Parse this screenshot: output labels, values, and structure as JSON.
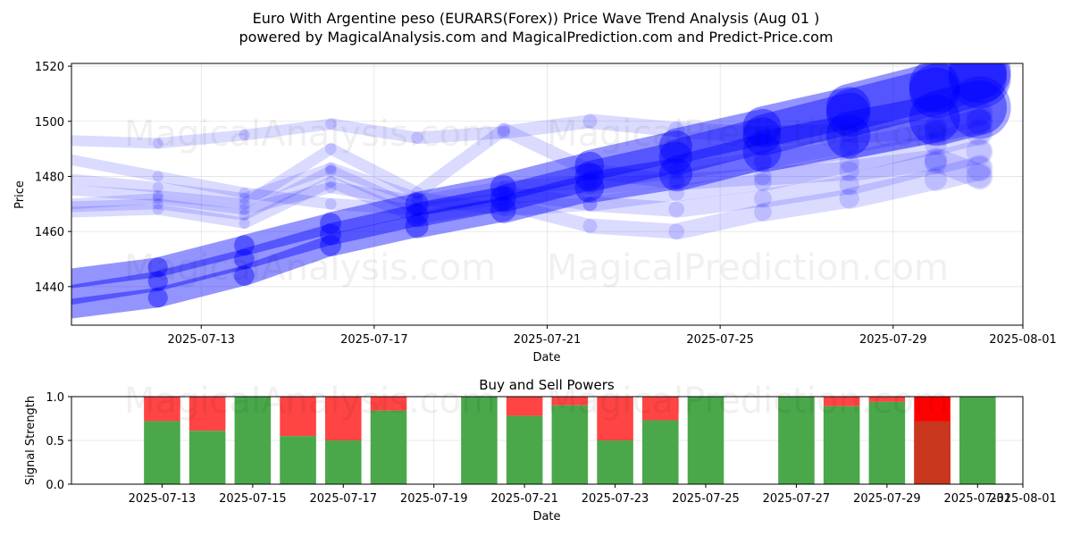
{
  "figure": {
    "title": "Euro With Argentine peso (EURARS(Forex)) Price Wave Trend Analysis (Aug 01 )",
    "subtitle": "powered by MagicalAnalysis.com and MagicalPrediction.com and Predict-Price.com",
    "watermarks": [
      "MagicalAnalysis.com",
      "MagicalPrediction.com",
      "MagicalAnalysis.com",
      "MagicalPrediction.com",
      "MagicalAnalysis.com",
      "MagicalPrediction.com"
    ],
    "colors": {
      "wave": "#0000ff",
      "buy": "#4aa84a",
      "sell": "#ff4444",
      "sell_strong": "#ff0000",
      "overlap": "#c8361e"
    }
  },
  "chart_data": [
    {
      "type": "area",
      "title": "",
      "xlabel": "Date",
      "ylabel": "Price",
      "xlim": [
        "2025-07-10",
        "2025-08-01"
      ],
      "ylim": [
        1426,
        1521
      ],
      "xticks": [
        "2025-07-13",
        "2025-07-17",
        "2025-07-21",
        "2025-07-25",
        "2025-07-29",
        "2025-08-01"
      ],
      "yticks": [
        1440,
        1460,
        1480,
        1500,
        1520
      ],
      "grid": true,
      "series": [
        {
          "x": [
            "2025-07-10",
            "2025-07-12",
            "2025-07-14",
            "2025-07-16",
            "2025-07-18",
            "2025-07-20",
            "2025-07-22",
            "2025-07-24",
            "2025-07-26",
            "2025-07-28",
            "2025-07-30",
            "2025-07-31"
          ],
          "values": [
            1437,
            1442,
            1450,
            1459,
            1466,
            1472,
            1480,
            1487,
            1495,
            1503,
            1511,
            1516
          ]
        },
        {
          "x": [
            "2025-07-10",
            "2025-07-12",
            "2025-07-14",
            "2025-07-16",
            "2025-07-18",
            "2025-07-20",
            "2025-07-22",
            "2025-07-24",
            "2025-07-26",
            "2025-07-28",
            "2025-07-30",
            "2025-07-31"
          ],
          "values": [
            1432,
            1436,
            1444,
            1455,
            1462,
            1468,
            1476,
            1481,
            1489,
            1495,
            1501,
            1505
          ]
        },
        {
          "x": [
            "2025-07-10",
            "2025-07-12",
            "2025-07-14",
            "2025-07-16",
            "2025-07-18",
            "2025-07-20",
            "2025-07-22",
            "2025-07-24",
            "2025-07-26",
            "2025-07-28",
            "2025-07-30",
            "2025-07-31"
          ],
          "values": [
            1443,
            1447,
            1455,
            1463,
            1470,
            1476,
            1484,
            1491,
            1498,
            1505,
            1513,
            1518
          ]
        },
        {
          "x": [
            "2025-07-10",
            "2025-07-12",
            "2025-07-14",
            "2025-07-16",
            "2025-07-18",
            "2025-07-20",
            "2025-07-22",
            "2025-07-24",
            "2025-07-26",
            "2025-07-28",
            "2025-07-30",
            "2025-07-31"
          ],
          "values": [
            1486,
            1480,
            1474,
            1470,
            1468,
            1472,
            1476,
            1479,
            1485,
            1490,
            1496,
            1500
          ]
        },
        {
          "x": [
            "2025-07-10",
            "2025-07-12",
            "2025-07-14",
            "2025-07-16",
            "2025-07-18",
            "2025-07-20",
            "2025-07-22",
            "2025-07-24",
            "2025-07-26",
            "2025-07-28",
            "2025-07-30",
            "2025-07-31"
          ],
          "values": [
            1470,
            1472,
            1468,
            1476,
            1471,
            1476,
            1478,
            1482,
            1486,
            1492,
            1498,
            1503
          ]
        },
        {
          "x": [
            "2025-07-10",
            "2025-07-12",
            "2025-07-14",
            "2025-07-16",
            "2025-07-18",
            "2025-07-20",
            "2025-07-22",
            "2025-07-24",
            "2025-07-26",
            "2025-07-28",
            "2025-07-30",
            "2025-07-31"
          ],
          "values": [
            1493,
            1492,
            1495,
            1499,
            1494,
            1496,
            1500,
            1497,
            1495,
            1496,
            1497,
            1500
          ]
        },
        {
          "x": [
            "2025-07-10",
            "2025-07-12",
            "2025-07-14",
            "2025-07-16",
            "2025-07-18",
            "2025-07-20",
            "2025-07-22",
            "2025-07-24",
            "2025-07-26",
            "2025-07-28",
            "2025-07-30",
            "2025-07-31"
          ],
          "values": [
            1479,
            1476,
            1472,
            1483,
            1472,
            1468,
            1470,
            1468,
            1472,
            1477,
            1485,
            1489
          ]
        },
        {
          "x": [
            "2025-07-10",
            "2025-07-12",
            "2025-07-14",
            "2025-07-16",
            "2025-07-18",
            "2025-07-20",
            "2025-07-22",
            "2025-07-24",
            "2025-07-26",
            "2025-07-28",
            "2025-07-30",
            "2025-07-31"
          ],
          "values": [
            1467,
            1468,
            1463,
            1478,
            1465,
            1470,
            1462,
            1460,
            1467,
            1472,
            1479,
            1483
          ]
        },
        {
          "x": [
            "2025-07-10",
            "2025-07-12",
            "2025-07-14",
            "2025-07-16",
            "2025-07-18",
            "2025-07-20",
            "2025-07-22",
            "2025-07-24",
            "2025-07-26",
            "2025-07-28",
            "2025-07-30",
            "2025-07-31"
          ],
          "values": [
            1475,
            1473,
            1470,
            1490,
            1474,
            1497,
            1482,
            1478,
            1480,
            1482,
            1486,
            1480
          ]
        },
        {
          "x": [
            "2025-07-10",
            "2025-07-12",
            "2025-07-14",
            "2025-07-16",
            "2025-07-18",
            "2025-07-20",
            "2025-07-22",
            "2025-07-24",
            "2025-07-26",
            "2025-07-28",
            "2025-07-30",
            "2025-07-31"
          ],
          "values": [
            1469,
            1470,
            1466,
            1482,
            1468,
            1474,
            1470,
            1474,
            1478,
            1485,
            1492,
            1496
          ]
        }
      ]
    },
    {
      "type": "bar",
      "title": "Buy and Sell Powers",
      "xlabel": "Date",
      "ylabel": "Signal Strength",
      "xlim": [
        "2025-07-11",
        "2025-08-01"
      ],
      "ylim": [
        0,
        1
      ],
      "xticks": [
        "2025-07-13",
        "2025-07-15",
        "2025-07-17",
        "2025-07-19",
        "2025-07-21",
        "2025-07-23",
        "2025-07-25",
        "2025-07-27",
        "2025-07-29",
        "2025-07-31",
        "2025-08-01"
      ],
      "yticks": [
        "0.0",
        "0.5",
        "1.0"
      ],
      "categories": [
        "2025-07-13",
        "2025-07-14",
        "2025-07-15",
        "2025-07-16",
        "2025-07-17",
        "2025-07-18",
        "2025-07-20",
        "2025-07-21",
        "2025-07-22",
        "2025-07-23",
        "2025-07-24",
        "2025-07-25",
        "2025-07-27",
        "2025-07-28",
        "2025-07-29",
        "2025-07-30",
        "2025-07-31"
      ],
      "series": [
        {
          "name": "Buy",
          "values": [
            0.72,
            0.61,
            1.0,
            0.55,
            0.5,
            0.84,
            1.0,
            0.78,
            0.9,
            0.5,
            0.73,
            1.0,
            1.0,
            0.89,
            0.94,
            0.72,
            1.0
          ]
        },
        {
          "name": "Sell",
          "values": [
            0.28,
            0.39,
            0.0,
            0.45,
            0.5,
            0.16,
            0.0,
            0.22,
            0.1,
            0.5,
            0.27,
            0.0,
            0.0,
            0.11,
            0.06,
            1.0,
            0.0
          ]
        }
      ]
    }
  ]
}
